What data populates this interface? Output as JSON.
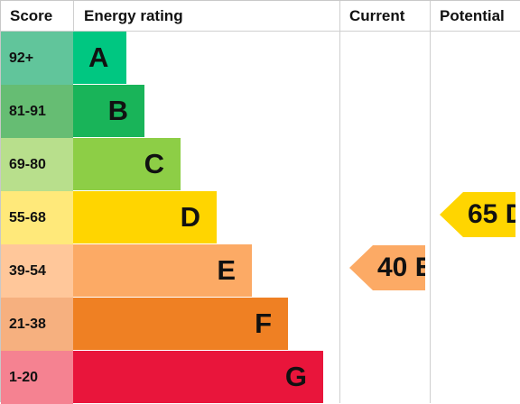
{
  "headers": {
    "score": "Score",
    "energy_rating": "Energy rating",
    "current": "Current",
    "potential": "Potential"
  },
  "rows": [
    {
      "score": "92+",
      "band": "A",
      "score_color": "#61c59b",
      "bar_color": "#00c781"
    },
    {
      "score": "81-91",
      "band": "B",
      "score_color": "#66bd73",
      "bar_color": "#19b459"
    },
    {
      "score": "69-80",
      "band": "C",
      "score_color": "#b8df8c",
      "bar_color": "#8dce46"
    },
    {
      "score": "55-68",
      "band": "D",
      "score_color": "#ffe97a",
      "bar_color": "#ffd500"
    },
    {
      "score": "39-54",
      "band": "E",
      "score_color": "#ffc79a",
      "bar_color": "#fcaa65"
    },
    {
      "score": "21-38",
      "band": "F",
      "score_color": "#f6b07f",
      "bar_color": "#ef8023"
    },
    {
      "score": "1-20",
      "band": "G",
      "score_color": "#f58291",
      "bar_color": "#e9153b"
    }
  ],
  "current": {
    "label": "40 E",
    "color": "#fcaa65"
  },
  "potential": {
    "label": "65 D",
    "color": "#ffd500"
  }
}
